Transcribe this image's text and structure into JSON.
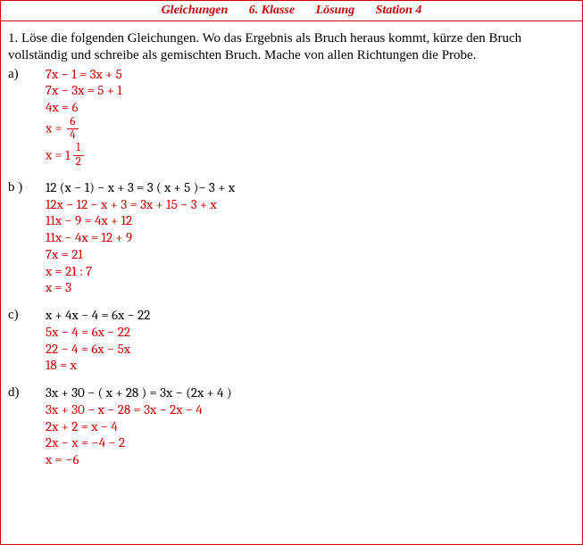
{
  "header": {
    "title1": "Gleichungen",
    "title2": "6. Klasse",
    "title3": "Lösung",
    "title4": "Station 4"
  },
  "instruction": "1. Löse die folgenden Gleichungen. Wo das Ergebnis als Bruch heraus kommt, kürze den Bruch vollständig und schreibe als gemischten Bruch. Mache von allen Richtungen die Probe.",
  "problems": {
    "a": {
      "label": "a)",
      "lines": [
        {
          "text": "7x − 1 = 3x + 5",
          "color": "red"
        },
        {
          "text": "7x − 3x = 5 + 1",
          "color": "red"
        },
        {
          "text": "4x = 6",
          "color": "red"
        }
      ],
      "frac1": {
        "prefix": "x =  ",
        "num": "6",
        "den": "4"
      },
      "frac2": {
        "prefix": "x =  ",
        "whole": "1",
        "num": "1",
        "den": "2"
      }
    },
    "b": {
      "label": "b )",
      "lines": [
        {
          "text": "12 (x − 1) −  x + 3 = 3 ( x + 5 )− 3 + x",
          "color": "black"
        },
        {
          "text": "12x − 12 − x + 3 = 3x + 15 − 3 + x",
          "color": "red"
        },
        {
          "text": "11x − 9 = 4x + 12",
          "color": "red"
        },
        {
          "text": "11x − 4x = 12 + 9",
          "color": "red"
        },
        {
          "text": "7x = 21",
          "color": "red"
        },
        {
          "text": "x = 21 : 7",
          "color": "red"
        },
        {
          "text": "x = 3",
          "color": "red"
        }
      ]
    },
    "c": {
      "label": "c)",
      "lines": [
        {
          "text": "x + 4x − 4 = 6x − 22",
          "color": "black"
        },
        {
          "text": "5x − 4 = 6x − 22",
          "color": "red"
        },
        {
          "text": "22 − 4 = 6x − 5x",
          "color": "red"
        },
        {
          "text": "18 = x",
          "color": "red"
        }
      ]
    },
    "d": {
      "label": "d)",
      "lines": [
        {
          "text": "3x + 30 − ( x + 28 ) = 3x − (2x + 4 )",
          "color": "black"
        },
        {
          "text": "3x + 30 − x − 28 = 3x − 2x − 4",
          "color": "red"
        },
        {
          "text": "2x + 2 = x − 4",
          "color": "red"
        },
        {
          "text": "2x − x =  −4 − 2",
          "color": "red"
        },
        {
          "text": "x =  −6",
          "color": "red"
        }
      ]
    }
  },
  "colors": {
    "red": "#cc0000",
    "black": "#000000"
  }
}
